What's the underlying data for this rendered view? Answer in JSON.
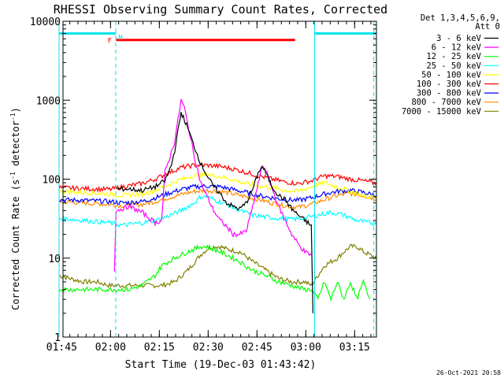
{
  "chart_data": {
    "type": "line",
    "title": "RHESSI Observing Summary Count Rates, Corrected",
    "xlabel": "Start Time (19-Dec-03 01:43:42)",
    "ylabel_pre": "Corrected Count Rate (s",
    "ylabel_sup": "-1",
    "ylabel_post": " detector",
    "ylabel_end": ")",
    "timestamp": "26-Oct-2021 20:58",
    "yscale": "log",
    "ylim": [
      1,
      10000
    ],
    "xlim_minutes": [
      1.7,
      98.0
    ],
    "x_unit": "minutes after 01:43:42",
    "x_ticks": [
      {
        "label": "01:45",
        "t": 1.3
      },
      {
        "label": "02:00",
        "t": 16.3
      },
      {
        "label": "02:15",
        "t": 31.3
      },
      {
        "label": "02:30",
        "t": 46.3
      },
      {
        "label": "02:45",
        "t": 61.3
      },
      {
        "label": "03:00",
        "t": 76.3
      },
      {
        "label": "03:15",
        "t": 91.3
      }
    ],
    "y_ticks": [
      {
        "label": "1",
        "v": 1
      },
      {
        "label": "10",
        "v": 10
      },
      {
        "label": "100",
        "v": 100
      },
      {
        "label": "1000",
        "v": 1000
      },
      {
        "label": "10000",
        "v": 10000
      }
    ],
    "legend_header": [
      "Det 1,3,4,5,6,9,",
      "Att 0"
    ],
    "legend_placement": "right",
    "annotations": [
      {
        "label": "F",
        "color": "#ff0000"
      },
      {
        "label": "N",
        "color": "#00e5ee"
      }
    ],
    "night_bar_segments": [
      [
        0.5,
        18.0
      ],
      [
        79.0,
        98.0
      ]
    ],
    "night_bar_value": 7000,
    "flare_bar": [
      18.0,
      73.0
    ],
    "flare_bar_value": 5800,
    "vertical_markers": [
      0.5,
      17.9,
      79.0,
      97.2
    ],
    "series": [
      {
        "name": "3 - 6 keV",
        "color": "#000000",
        "t": [
          18,
          22,
          26,
          30,
          33,
          35,
          36,
          38,
          40,
          42,
          44,
          46,
          48,
          50,
          52,
          54,
          56,
          58,
          60,
          62,
          63,
          64,
          66,
          68,
          70,
          72,
          74,
          76,
          77,
          78,
          78.5
        ],
        "v": [
          75,
          75,
          72,
          80,
          95,
          150,
          230,
          700,
          450,
          260,
          160,
          110,
          80,
          65,
          50,
          45,
          42,
          50,
          75,
          130,
          145,
          120,
          80,
          62,
          55,
          42,
          35,
          30,
          28,
          25,
          2
        ]
      },
      {
        "name": "6 - 12 keV",
        "color": "#ff00ff",
        "t": [
          17.5,
          18,
          22,
          26,
          30,
          32,
          33,
          35,
          36,
          38,
          39,
          40,
          42,
          44,
          46,
          48,
          50,
          52,
          54,
          56,
          58,
          60,
          62,
          63,
          64,
          66,
          68,
          70,
          72,
          74,
          76,
          78
        ],
        "v": [
          7,
          40,
          45,
          38,
          28,
          30,
          120,
          220,
          300,
          1000,
          800,
          500,
          200,
          90,
          60,
          40,
          30,
          25,
          20,
          20,
          22,
          45,
          100,
          150,
          130,
          75,
          45,
          30,
          20,
          15,
          12,
          11
        ]
      },
      {
        "name": "12 - 25 keV",
        "color": "#00ff00",
        "t": [
          0.5,
          4,
          8,
          12,
          16,
          18,
          22,
          26,
          30,
          32,
          34,
          36,
          38,
          40,
          42,
          44,
          46,
          48,
          50,
          52,
          56,
          60,
          64,
          68,
          72,
          76,
          78,
          80,
          82,
          84,
          86,
          88,
          90,
          92,
          94,
          96
        ],
        "v": [
          4,
          4,
          4,
          4,
          4,
          4,
          4,
          4.5,
          6,
          8,
          9,
          10,
          11,
          12,
          13,
          14,
          14,
          13,
          12,
          11,
          9,
          7,
          6,
          5,
          4.5,
          4,
          4,
          3,
          5,
          3,
          5,
          3,
          5,
          3,
          5,
          3
        ]
      },
      {
        "name": "25 - 50 keV",
        "color": "#00ffff",
        "t": [
          0.5,
          8,
          16,
          20,
          26,
          30,
          34,
          38,
          42,
          44,
          46,
          48,
          52,
          56,
          60,
          64,
          68,
          72,
          76,
          80,
          84,
          88,
          92,
          96,
          98
        ],
        "v": [
          32,
          30,
          28,
          26,
          28,
          30,
          34,
          40,
          50,
          60,
          60,
          55,
          48,
          40,
          35,
          33,
          32,
          31,
          32,
          35,
          38,
          35,
          30,
          28,
          27
        ]
      },
      {
        "name": "50 - 100 keV",
        "color": "#ffff00",
        "t": [
          0.5,
          8,
          16,
          20,
          26,
          30,
          34,
          38,
          42,
          46,
          50,
          54,
          58,
          62,
          66,
          70,
          74,
          78,
          82,
          86,
          90,
          94,
          98
        ],
        "v": [
          70,
          68,
          65,
          62,
          65,
          72,
          85,
          100,
          110,
          115,
          108,
          98,
          88,
          82,
          78,
          72,
          70,
          80,
          90,
          80,
          70,
          62,
          58
        ]
      },
      {
        "name": "100 - 300 keV",
        "color": "#ff0000",
        "t": [
          0.5,
          8,
          16,
          20,
          26,
          30,
          34,
          38,
          42,
          46,
          50,
          54,
          58,
          62,
          66,
          70,
          74,
          78,
          82,
          86,
          90,
          94,
          98
        ],
        "v": [
          78,
          76,
          74,
          80,
          88,
          100,
          120,
          140,
          150,
          150,
          145,
          135,
          122,
          110,
          100,
          92,
          88,
          95,
          110,
          108,
          100,
          95,
          88
        ]
      },
      {
        "name": "300 - 800 keV",
        "color": "#0000ff",
        "t": [
          0.5,
          8,
          16,
          20,
          26,
          30,
          34,
          38,
          42,
          46,
          50,
          54,
          58,
          62,
          66,
          70,
          74,
          78,
          82,
          86,
          90,
          94,
          98
        ],
        "v": [
          55,
          54,
          52,
          50,
          52,
          58,
          66,
          74,
          80,
          82,
          80,
          74,
          68,
          62,
          58,
          55,
          54,
          58,
          65,
          70,
          72,
          68,
          62
        ]
      },
      {
        "name": "800 - 7000 keV",
        "color": "#ff8c00",
        "t": [
          0.5,
          8,
          16,
          20,
          26,
          30,
          34,
          38,
          42,
          46,
          50,
          54,
          58,
          62,
          66,
          70,
          74,
          78,
          82,
          86,
          90,
          94,
          98
        ],
        "v": [
          52,
          50,
          48,
          46,
          48,
          52,
          58,
          64,
          70,
          72,
          70,
          65,
          60,
          55,
          50,
          46,
          44,
          48,
          55,
          62,
          66,
          62,
          56
        ]
      },
      {
        "name": "7000 - 15000 keV",
        "color": "#808000",
        "t": [
          0.5,
          4,
          8,
          12,
          16,
          20,
          24,
          28,
          32,
          36,
          40,
          44,
          46,
          48,
          50,
          52,
          56,
          60,
          64,
          68,
          72,
          76,
          78,
          80,
          82,
          84,
          86,
          88,
          90,
          92,
          94,
          96,
          98
        ],
        "v": [
          6,
          5.5,
          5,
          5,
          4.5,
          4.5,
          4.5,
          4.5,
          4.5,
          5,
          7,
          11,
          13,
          14,
          14,
          13,
          12,
          9,
          7,
          5.5,
          5,
          5,
          4.5,
          6,
          8,
          9,
          10,
          12,
          14,
          14,
          12,
          11,
          10
        ]
      }
    ]
  }
}
